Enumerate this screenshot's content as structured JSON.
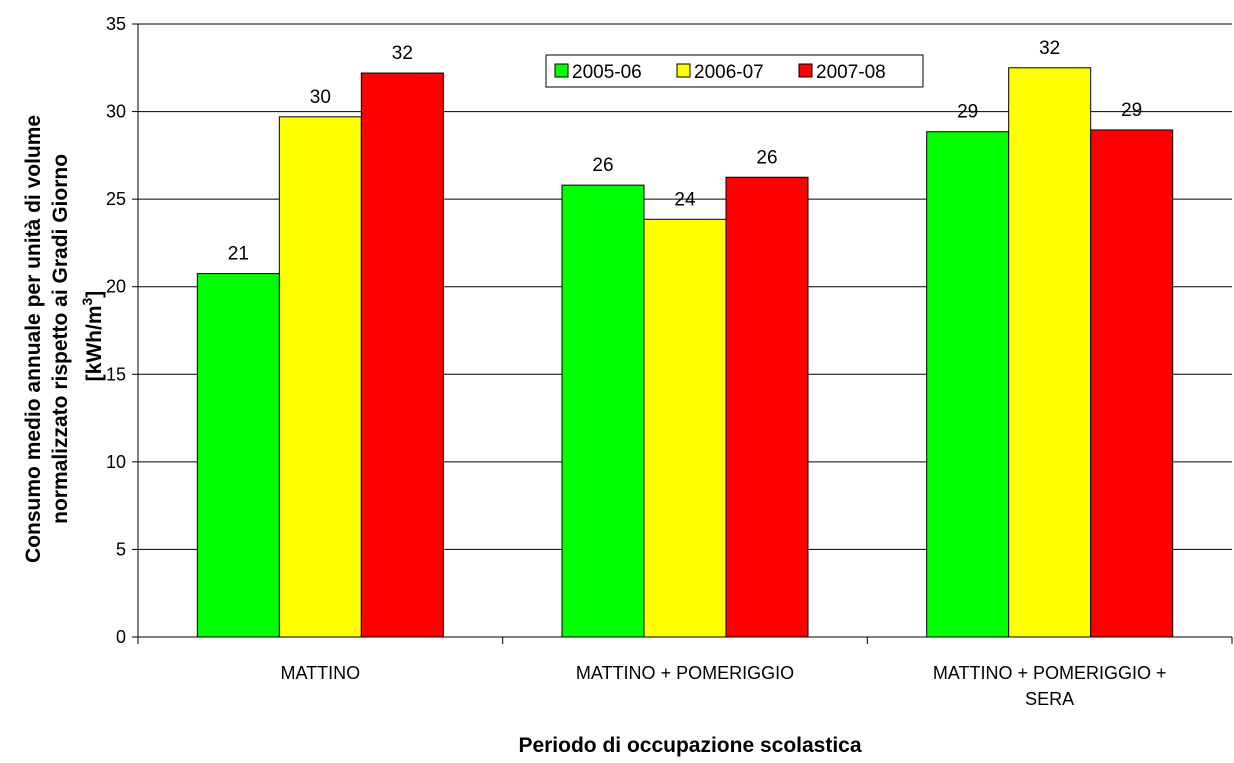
{
  "chart_data": {
    "type": "bar",
    "xlabel": "Periodo di occupazione scolastica",
    "ylabel_lines": [
      "Consumo medio annuale per unità di volume",
      "normalizzato rispetto ai Gradi Giorno",
      "[kWh/m",
      "3",
      "]"
    ],
    "categories": [
      [
        "MATTINO"
      ],
      [
        "MATTINO + POMERIGGIO"
      ],
      [
        "MATTINO + POMERIGGIO +",
        "SERA"
      ]
    ],
    "series": [
      {
        "name": "2005-06",
        "color": "#00ff00",
        "values": [
          20.75,
          25.8,
          28.85
        ],
        "labels": [
          "21",
          "26",
          "29"
        ]
      },
      {
        "name": "2006-07",
        "color": "#ffff00",
        "values": [
          29.7,
          23.85,
          32.5
        ],
        "labels": [
          "30",
          "24",
          "32"
        ]
      },
      {
        "name": "2007-08",
        "color": "#ff0000",
        "values": [
          32.2,
          26.25,
          28.95
        ],
        "labels": [
          "32",
          "26",
          "29"
        ]
      }
    ],
    "ylim": [
      0,
      35
    ],
    "yticks": [
      0,
      5,
      10,
      15,
      20,
      25,
      30,
      35
    ],
    "grid": true,
    "legend_position": "top-center"
  }
}
